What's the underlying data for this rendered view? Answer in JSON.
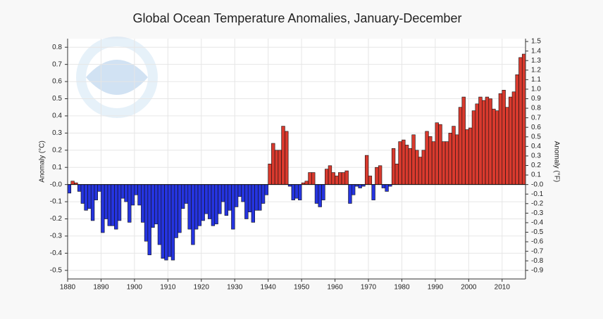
{
  "chart_data": {
    "type": "bar",
    "title": "Global Ocean Temperature Anomalies, January-December",
    "y_label": "Anomaly (°C)",
    "y2_label": "Anomaly (°F)",
    "positive_color": "#d93a2e",
    "negative_color": "#2534e0",
    "grid": true,
    "x": [
      1880,
      1881,
      1882,
      1883,
      1884,
      1885,
      1886,
      1887,
      1888,
      1889,
      1890,
      1891,
      1892,
      1893,
      1894,
      1895,
      1896,
      1897,
      1898,
      1899,
      1900,
      1901,
      1902,
      1903,
      1904,
      1905,
      1906,
      1907,
      1908,
      1909,
      1910,
      1911,
      1912,
      1913,
      1914,
      1915,
      1916,
      1917,
      1918,
      1919,
      1920,
      1921,
      1922,
      1923,
      1924,
      1925,
      1926,
      1927,
      1928,
      1929,
      1930,
      1931,
      1932,
      1933,
      1934,
      1935,
      1936,
      1937,
      1938,
      1939,
      1940,
      1941,
      1942,
      1943,
      1944,
      1945,
      1946,
      1947,
      1948,
      1949,
      1950,
      1951,
      1952,
      1953,
      1954,
      1955,
      1956,
      1957,
      1958,
      1959,
      1960,
      1961,
      1962,
      1963,
      1964,
      1965,
      1966,
      1967,
      1968,
      1969,
      1970,
      1971,
      1972,
      1973,
      1974,
      1975,
      1976,
      1977,
      1978,
      1979,
      1980,
      1981,
      1982,
      1983,
      1984,
      1985,
      1986,
      1987,
      1988,
      1989,
      1990,
      1991,
      1992,
      1993,
      1994,
      1995,
      1996,
      1997,
      1998,
      1999,
      2000,
      2001,
      2002,
      2003,
      2004,
      2005,
      2006,
      2007,
      2008,
      2009,
      2010,
      2011,
      2012,
      2013,
      2014,
      2015,
      2016
    ],
    "values": [
      -0.05,
      0.02,
      0.01,
      -0.04,
      -0.11,
      -0.15,
      -0.14,
      -0.21,
      -0.09,
      -0.04,
      -0.28,
      -0.2,
      -0.24,
      -0.24,
      -0.26,
      -0.21,
      -0.08,
      -0.1,
      -0.22,
      -0.12,
      -0.06,
      -0.12,
      -0.22,
      -0.33,
      -0.41,
      -0.25,
      -0.23,
      -0.35,
      -0.43,
      -0.44,
      -0.42,
      -0.44,
      -0.31,
      -0.28,
      -0.14,
      -0.11,
      -0.26,
      -0.35,
      -0.26,
      -0.24,
      -0.21,
      -0.17,
      -0.2,
      -0.24,
      -0.23,
      -0.17,
      -0.1,
      -0.18,
      -0.15,
      -0.26,
      -0.13,
      -0.07,
      -0.1,
      -0.2,
      -0.16,
      -0.22,
      -0.15,
      -0.15,
      -0.11,
      -0.06,
      0.12,
      0.24,
      0.2,
      0.2,
      0.34,
      0.31,
      -0.01,
      -0.09,
      -0.08,
      -0.09,
      0.01,
      0.02,
      0.07,
      0.07,
      -0.11,
      -0.13,
      -0.09,
      0.09,
      0.11,
      0.07,
      0.05,
      0.07,
      0.07,
      0.08,
      -0.11,
      -0.06,
      -0.01,
      -0.02,
      -0.01,
      0.17,
      0.05,
      -0.09,
      0.1,
      0.11,
      -0.02,
      -0.04,
      -0.01,
      0.21,
      0.12,
      0.25,
      0.26,
      0.23,
      0.21,
      0.29,
      0.2,
      0.16,
      0.2,
      0.31,
      0.28,
      0.25,
      0.36,
      0.35,
      0.25,
      0.25,
      0.3,
      0.34,
      0.29,
      0.45,
      0.51,
      0.32,
      0.33,
      0.43,
      0.47,
      0.51,
      0.49,
      0.51,
      0.5,
      0.44,
      0.43,
      0.53,
      0.55,
      0.45,
      0.51,
      0.54,
      0.64,
      0.74,
      0.76
    ],
    "xlim": [
      1880,
      2017
    ],
    "xticks": [
      1880,
      1890,
      1900,
      1910,
      1920,
      1930,
      1940,
      1950,
      1960,
      1970,
      1980,
      1990,
      2000,
      2010
    ],
    "ylim": [
      -0.55,
      0.85
    ],
    "yticks": [
      -0.5,
      -0.4,
      -0.3,
      -0.2,
      -0.1,
      {
        "value": 0,
        "label": "-0.0"
      },
      0.1,
      0.2,
      0.3,
      0.4,
      0.5,
      0.6,
      0.7,
      0.8
    ],
    "y2lim": [
      -0.99,
      1.53
    ],
    "y2ticks": [
      -0.9,
      -0.8,
      -0.7,
      -0.6,
      -0.5,
      -0.4,
      -0.3,
      -0.2,
      -0.1,
      {
        "value": 0,
        "label": "-0.0"
      },
      0.1,
      0.2,
      0.3,
      0.4,
      0.5,
      0.6,
      0.7,
      0.8,
      0.9,
      {
        "value": 1,
        "label": "1.0"
      },
      1.1,
      1.2,
      1.3,
      1.4,
      1.5
    ]
  }
}
